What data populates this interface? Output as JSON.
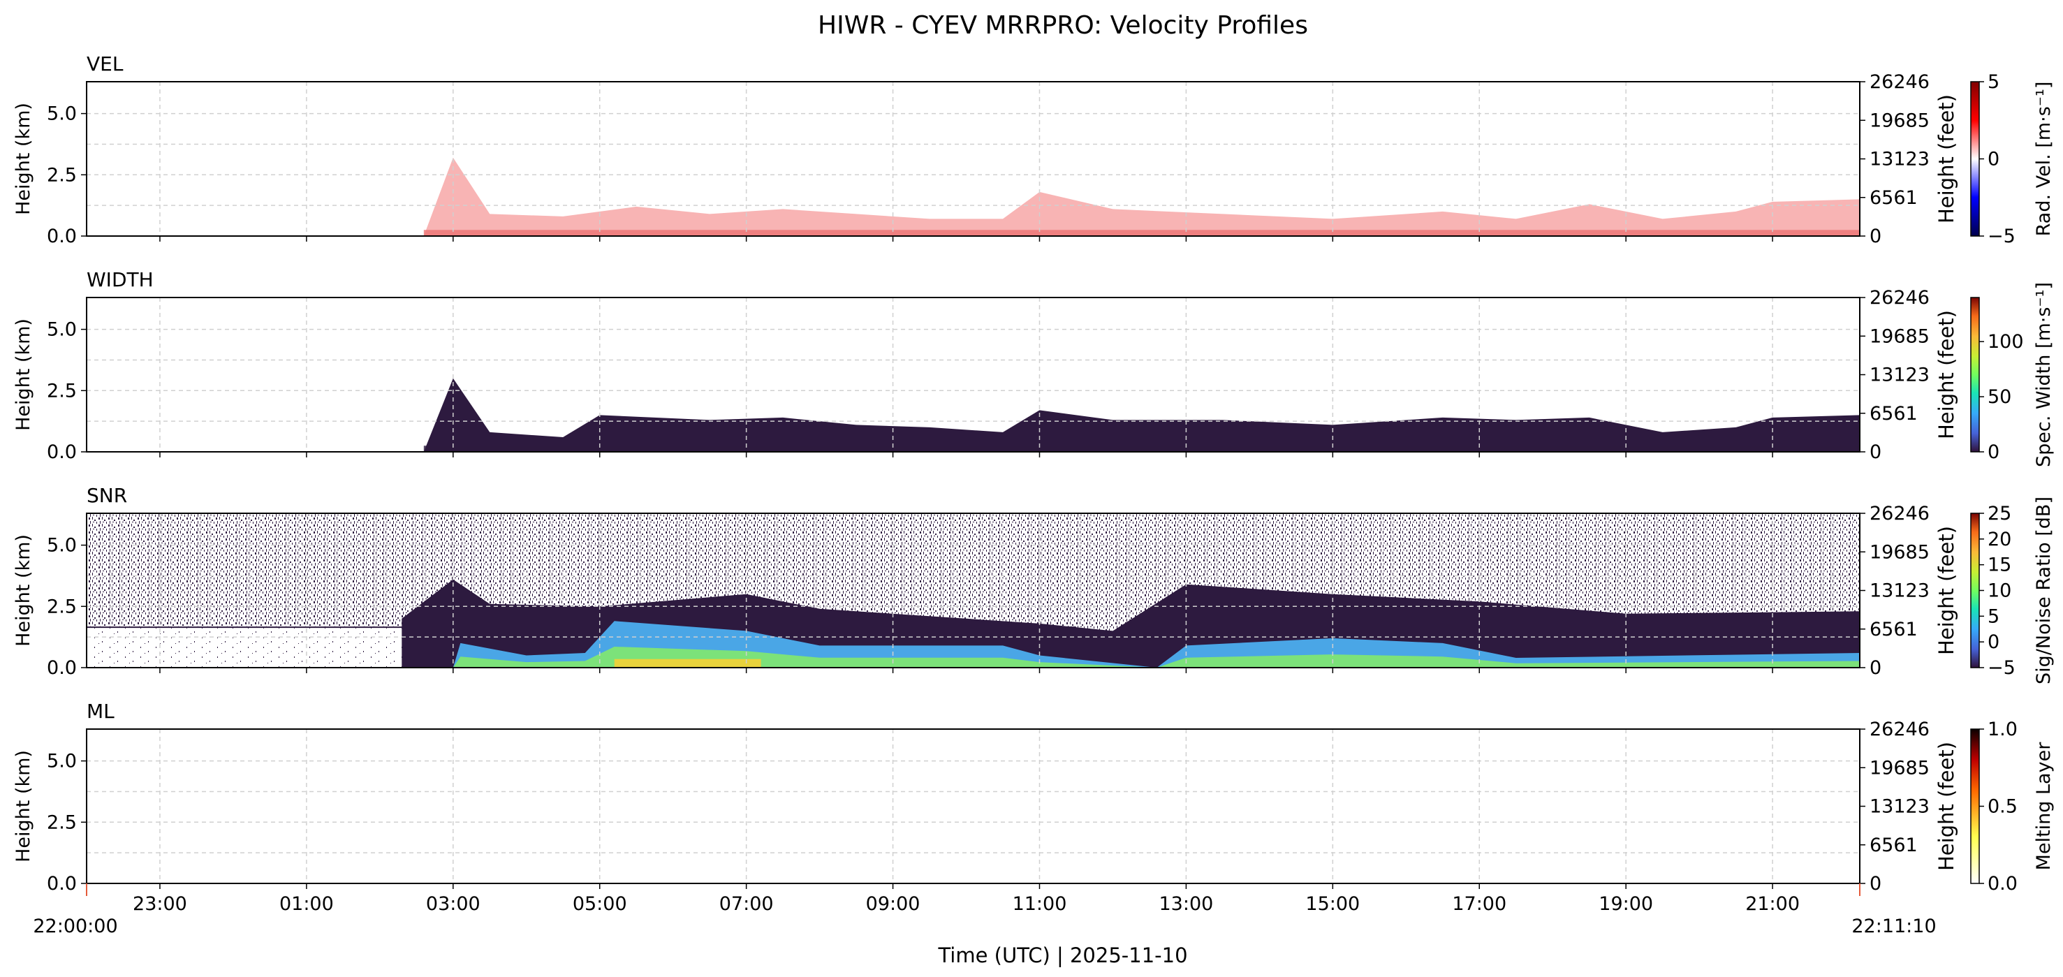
{
  "figure": {
    "title": "HIWR - CYEV MRRPRO: Velocity Profiles",
    "xlabel": "Time (UTC)  |  2025-11-10",
    "start_label": "22:00:00",
    "end_label": "22:11:10"
  },
  "chart_data": [
    {
      "type": "heatmap",
      "title": "VEL",
      "ylabel": "Height (km)",
      "ylabel_right": "Height (feet)",
      "ylim": [
        0,
        6.3
      ],
      "yticks": [
        "0.0",
        "2.5",
        "5.0"
      ],
      "yticks_right": [
        "0",
        "6561",
        "13123",
        "19685",
        "26246"
      ],
      "x_hours": [
        0,
        24.19
      ],
      "xticks": [
        "23:00",
        "01:00",
        "03:00",
        "05:00",
        "07:00",
        "09:00",
        "11:00",
        "13:00",
        "15:00",
        "17:00",
        "19:00",
        "21:00"
      ],
      "colorbar": {
        "label": "Rad. Vel. [m·s⁻¹]",
        "range": [
          -5,
          5
        ],
        "ticks": [
          "5",
          "0",
          "−5"
        ],
        "colormap": "seismic"
      },
      "cloud_top_km": [
        [
          4.6,
          0
        ],
        [
          4.8,
          1.6
        ],
        [
          5.0,
          3.2
        ],
        [
          5.5,
          0.9
        ],
        [
          6.5,
          0.8
        ],
        [
          7.5,
          1.2
        ],
        [
          8.5,
          0.9
        ],
        [
          9.5,
          1.1
        ],
        [
          10.5,
          0.9
        ],
        [
          11.5,
          0.7
        ],
        [
          12.5,
          0.7
        ],
        [
          13.0,
          1.8
        ],
        [
          14.0,
          1.1
        ],
        [
          15.5,
          0.9
        ],
        [
          17.0,
          0.7
        ],
        [
          18.5,
          1.0
        ],
        [
          19.5,
          0.7
        ],
        [
          20.5,
          1.3
        ],
        [
          21.5,
          0.7
        ],
        [
          22.5,
          1.0
        ],
        [
          23.0,
          1.4
        ],
        [
          24.19,
          1.5
        ]
      ],
      "fill_color": "#f7a7a7",
      "fill_ticks_color": "#ec7373"
    },
    {
      "type": "heatmap",
      "title": "WIDTH",
      "ylabel": "Height (km)",
      "ylabel_right": "Height (feet)",
      "ylim": [
        0,
        6.3
      ],
      "yticks": [
        "0.0",
        "2.5",
        "5.0"
      ],
      "yticks_right": [
        "0",
        "6561",
        "13123",
        "19685",
        "26246"
      ],
      "x_hours": [
        0,
        24.19
      ],
      "xticks": [
        "23:00",
        "01:00",
        "03:00",
        "05:00",
        "07:00",
        "09:00",
        "11:00",
        "13:00",
        "15:00",
        "17:00",
        "19:00",
        "21:00"
      ],
      "colorbar": {
        "label": "Spec. Width [m·s⁻¹]",
        "range": [
          0,
          140
        ],
        "ticks": [
          "100",
          "50",
          "0"
        ],
        "colormap": "turbo"
      },
      "cloud_top_km": [
        [
          4.6,
          0
        ],
        [
          4.8,
          1.5
        ],
        [
          5.0,
          3.0
        ],
        [
          5.5,
          0.8
        ],
        [
          6.5,
          0.6
        ],
        [
          7.0,
          1.5
        ],
        [
          8.5,
          1.3
        ],
        [
          9.5,
          1.4
        ],
        [
          10.5,
          1.1
        ],
        [
          11.5,
          1.0
        ],
        [
          12.5,
          0.8
        ],
        [
          13.0,
          1.7
        ],
        [
          14.0,
          1.3
        ],
        [
          15.5,
          1.3
        ],
        [
          17.0,
          1.1
        ],
        [
          18.5,
          1.4
        ],
        [
          19.5,
          1.3
        ],
        [
          20.5,
          1.4
        ],
        [
          21.5,
          0.8
        ],
        [
          22.5,
          1.0
        ],
        [
          23.0,
          1.4
        ],
        [
          24.19,
          1.5
        ]
      ],
      "fill_color": "#2d1a3f",
      "fill_ticks_color": "#2d1a3f"
    },
    {
      "type": "heatmap",
      "title": "SNR",
      "ylabel": "Height (km)",
      "ylabel_right": "Height (feet)",
      "ylim": [
        0,
        6.3
      ],
      "yticks": [
        "0.0",
        "2.5",
        "5.0"
      ],
      "yticks_right": [
        "0",
        "6561",
        "13123",
        "19685",
        "26246"
      ],
      "x_hours": [
        0,
        24.19
      ],
      "xticks": [
        "23:00",
        "01:00",
        "03:00",
        "05:00",
        "07:00",
        "09:00",
        "11:00",
        "13:00",
        "15:00",
        "17:00",
        "19:00",
        "21:00"
      ],
      "colorbar": {
        "label": "Sig/Noise Ratio [dB]",
        "range": [
          -5,
          25
        ],
        "ticks": [
          "25",
          "20",
          "15",
          "10",
          "5",
          "0",
          "−5"
        ],
        "colormap": "turbo"
      },
      "dark_top_km": [
        [
          4.3,
          2.0
        ],
        [
          5.0,
          3.6
        ],
        [
          5.5,
          2.6
        ],
        [
          7.0,
          2.5
        ],
        [
          9.0,
          3.0
        ],
        [
          10.0,
          2.4
        ],
        [
          12.0,
          2.0
        ],
        [
          13.0,
          1.8
        ],
        [
          14.0,
          1.5
        ],
        [
          15.0,
          3.4
        ],
        [
          17.0,
          3.0
        ],
        [
          19.0,
          2.7
        ],
        [
          21.0,
          2.2
        ],
        [
          24.19,
          2.3
        ]
      ],
      "echo_top_km": [
        [
          5.0,
          0
        ],
        [
          5.1,
          1.0
        ],
        [
          6.0,
          0.5
        ],
        [
          6.8,
          0.6
        ],
        [
          7.2,
          1.9
        ],
        [
          9.0,
          1.5
        ],
        [
          10.0,
          0.9
        ],
        [
          12.5,
          0.9
        ],
        [
          13.0,
          0.5
        ],
        [
          14.6,
          0
        ],
        [
          15.0,
          0.9
        ],
        [
          17.0,
          1.2
        ],
        [
          18.5,
          1.0
        ],
        [
          19.5,
          0.4
        ],
        [
          24.19,
          0.6
        ]
      ],
      "fill_color": "#2d1a3f",
      "echo_color": "#4aa6e6",
      "echo_core_color": "#7ce27a",
      "echo_peak_color": "#e8d23c"
    },
    {
      "type": "heatmap",
      "title": "ML",
      "ylabel": "Height (km)",
      "ylabel_right": "Height (feet)",
      "ylim": [
        0,
        6.3
      ],
      "yticks": [
        "0.0",
        "2.5",
        "5.0"
      ],
      "yticks_right": [
        "0",
        "6561",
        "13123",
        "19685",
        "26246"
      ],
      "x_hours": [
        0,
        24.19
      ],
      "xticks": [
        "23:00",
        "01:00",
        "03:00",
        "05:00",
        "07:00",
        "09:00",
        "11:00",
        "13:00",
        "15:00",
        "17:00",
        "19:00",
        "21:00"
      ],
      "colorbar": {
        "label": "Melting Layer",
        "range": [
          0,
          1
        ],
        "ticks": [
          "1.0",
          "0.5",
          "0.0"
        ],
        "colormap": "hot_r"
      }
    }
  ],
  "colors": {
    "grid": "#d0d0d0",
    "axis": "#000000",
    "edge_tick": "#e45a3a"
  }
}
